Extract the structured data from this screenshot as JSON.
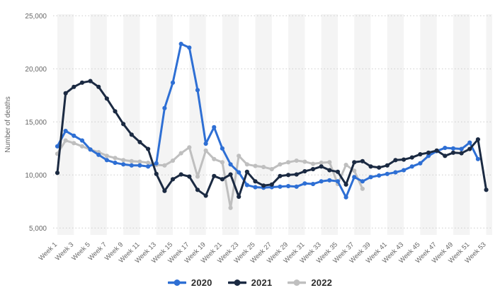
{
  "chart": {
    "y_axis_label": "Number of deaths",
    "colors": {
      "band": "#f4f4f4",
      "grid": "#cccccc",
      "tick_text": "#666666",
      "legend_text": "#2b2b2b"
    },
    "legend": [
      {
        "label": "2020",
        "color": "#2e6fd4"
      },
      {
        "label": "2021",
        "color": "#1b2a42"
      },
      {
        "label": "2022",
        "color": "#bfbfbf"
      }
    ]
  },
  "chart_data": {
    "type": "line",
    "title": "",
    "xlabel": "",
    "ylabel": "Number of deaths",
    "ylim": [
      5000,
      25000
    ],
    "y_ticks": [
      25000,
      20000,
      15000,
      10000,
      5000
    ],
    "y_tick_labels": [
      "25,000",
      "20,000",
      "15,000",
      "10,000",
      "5,000"
    ],
    "x_tick_weeks": [
      1,
      3,
      5,
      7,
      9,
      11,
      13,
      15,
      17,
      19,
      21,
      23,
      25,
      27,
      29,
      31,
      33,
      35,
      37,
      39,
      41,
      43,
      45,
      47,
      49,
      51,
      53
    ],
    "x_tick_labels": [
      "Week 1",
      "Week 3",
      "Week 5",
      "Week 7",
      "Week 9",
      "Week 11",
      "Week 13",
      "Week 15",
      "Week 17",
      "Week 19",
      "Week 21",
      "Week 23",
      "Week 25",
      "Week 27",
      "Week 29",
      "Week 31",
      "Week 33",
      "Week 35",
      "Week 37",
      "Week 39",
      "Week 41",
      "Week 43",
      "Week 45",
      "Week 47",
      "Week 49",
      "Week 51",
      "Week 53"
    ],
    "grid": "horizontal-dotted",
    "legend_position": "bottom",
    "series": [
      {
        "name": "2022",
        "color": "#bfbfbf",
        "start_week": 1,
        "values": [
          12000,
          13250,
          13000,
          12700,
          12400,
          12150,
          11800,
          11600,
          11400,
          11300,
          11250,
          11150,
          10950,
          10900,
          11350,
          12050,
          12600,
          9850,
          12300,
          11500,
          11200,
          6900,
          11800,
          11000,
          10850,
          10750,
          10550,
          11000,
          11200,
          11350,
          11250,
          11050,
          11150,
          11200,
          9150,
          10950,
          10400,
          8700
        ]
      },
      {
        "name": "2020",
        "color": "#2e6fd4",
        "start_week": 1,
        "values": [
          12700,
          14150,
          13700,
          13250,
          12400,
          11900,
          11400,
          11150,
          11000,
          10900,
          10900,
          10800,
          11100,
          16300,
          18700,
          22350,
          22000,
          18000,
          12950,
          14500,
          12500,
          11000,
          10250,
          9050,
          8850,
          8800,
          8850,
          8900,
          8950,
          8900,
          9200,
          9150,
          9400,
          9500,
          9400,
          7900,
          9800,
          9400,
          9800,
          9950,
          10100,
          10250,
          10450,
          10800,
          11100,
          11800,
          12250,
          12550,
          12500,
          12450,
          13050,
          11500
        ]
      },
      {
        "name": "2021",
        "color": "#1b2a42",
        "start_week": 1,
        "values": [
          10200,
          17700,
          18300,
          18700,
          18850,
          18300,
          17200,
          16000,
          14800,
          13800,
          13100,
          12450,
          10100,
          8500,
          9600,
          10050,
          9850,
          8600,
          8050,
          9900,
          9600,
          10050,
          7950,
          10300,
          9400,
          9000,
          9100,
          9900,
          10000,
          10050,
          10350,
          10550,
          10800,
          10450,
          10300,
          9100,
          11200,
          11300,
          10800,
          10700,
          10900,
          11400,
          11450,
          11650,
          11950,
          12100,
          12300,
          11800,
          12100,
          12050,
          12450,
          13350,
          8600
        ]
      }
    ]
  }
}
